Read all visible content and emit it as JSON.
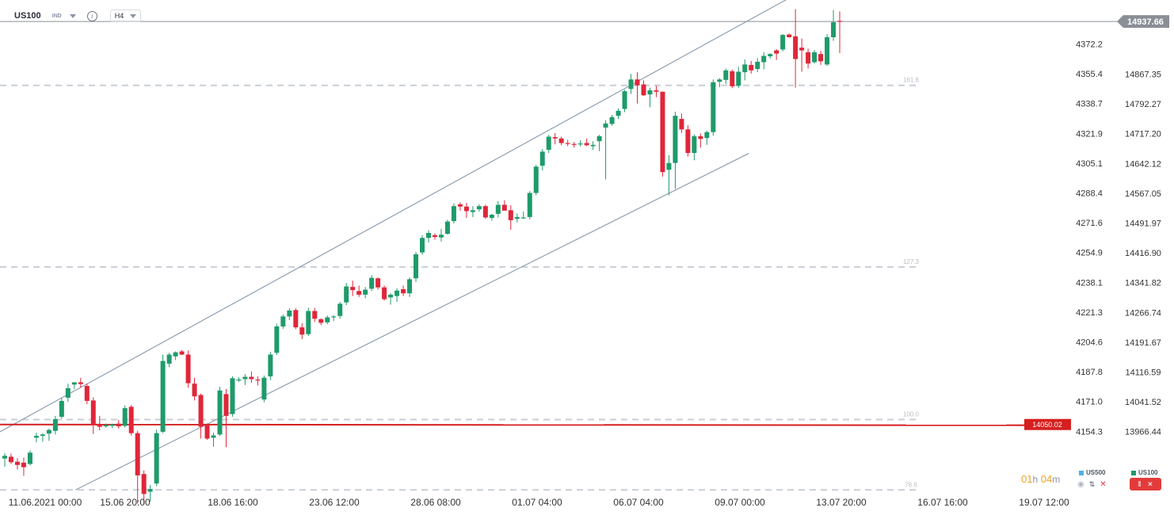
{
  "header": {
    "symbol": "US100",
    "market_tag": "IND",
    "timeframe": "H4"
  },
  "chart_data": {
    "type": "candlestick",
    "title": "",
    "left_axis_ticks": [
      "4372.2",
      "4355.4",
      "4338.7",
      "4321.9",
      "4305.1",
      "4288.4",
      "4271.6",
      "4254.9",
      "4238.1",
      "4221.3",
      "4204.6",
      "4187.8",
      "4171.0",
      "4154.3"
    ],
    "right_axis_ticks": [
      "14867.35",
      "14792.27",
      "14717.20",
      "14642.12",
      "14567.05",
      "14491.97",
      "14416.90",
      "14341.82",
      "14266.74",
      "14191.67",
      "14116.59",
      "14041.52",
      "13966.44"
    ],
    "ylim": [
      13896,
      14980
    ],
    "x_ticks": [
      "11.06.2021  00:00",
      "15.06  20:00",
      "18.06  16:00",
      "23.06  12:00",
      "28.06  08:00",
      "01.07  04:00",
      "06.07  04:00",
      "09.07  00:00",
      "13.07  20:00",
      "16.07  16:00",
      "19.07  12:00"
    ],
    "current_price": 14937.66,
    "current_price_label": "14937.66",
    "alert_level": 14050.02,
    "alert_label": "14050.02",
    "fib_levels": [
      {
        "label": "161.8",
        "value": 14797
      },
      {
        "label": "127.3",
        "value": 14397
      },
      {
        "label": "100.0",
        "value": 14061
      },
      {
        "label": "78.6",
        "value": 13906
      }
    ],
    "channel_lines": [
      {
        "from": [
          "11.06.2021 00:00",
          14034
        ],
        "to": [
          "13.07 12:00",
          15006
        ]
      },
      {
        "from": [
          "14.06 04:00",
          13906
        ],
        "to": [
          "12.07 12:00",
          14647
        ]
      }
    ],
    "candles": [
      {
        "t": 0,
        "o": 13975,
        "h": 13987,
        "l": 13957,
        "c": 13981
      },
      {
        "t": 1,
        "o": 13979,
        "h": 13986,
        "l": 13963,
        "c": 13967
      },
      {
        "t": 2,
        "o": 13968,
        "h": 13976,
        "l": 13951,
        "c": 13961
      },
      {
        "t": 3,
        "o": 13966,
        "h": 13977,
        "l": 13937,
        "c": 13956
      },
      {
        "t": 4,
        "o": 13963,
        "h": 13993,
        "l": 13960,
        "c": 13988
      },
      {
        "t": 5,
        "o": 14021,
        "h": 14032,
        "l": 14011,
        "c": 14025
      },
      {
        "t": 6,
        "o": 14025,
        "h": 14031,
        "l": 14012,
        "c": 14028
      },
      {
        "t": 7,
        "o": 14030,
        "h": 14041,
        "l": 14014,
        "c": 14038
      },
      {
        "t": 8,
        "o": 14036,
        "h": 14069,
        "l": 14028,
        "c": 14062
      },
      {
        "t": 9,
        "o": 14067,
        "h": 14108,
        "l": 14063,
        "c": 14102
      },
      {
        "t": 10,
        "o": 14109,
        "h": 14140,
        "l": 14100,
        "c": 14130
      },
      {
        "t": 11,
        "o": 14138,
        "h": 14142,
        "l": 14128,
        "c": 14143
      },
      {
        "t": 12,
        "o": 14143,
        "h": 14153,
        "l": 14131,
        "c": 14139
      },
      {
        "t": 13,
        "o": 14135,
        "h": 14140,
        "l": 14095,
        "c": 14102
      },
      {
        "t": 14,
        "o": 14103,
        "h": 14110,
        "l": 14029,
        "c": 14049
      },
      {
        "t": 15,
        "o": 14050,
        "h": 14069,
        "l": 14037,
        "c": 14045
      },
      {
        "t": 16,
        "o": 14046,
        "h": 14052,
        "l": 14043,
        "c": 14049
      },
      {
        "t": 17,
        "o": 14047,
        "h": 14052,
        "l": 14042,
        "c": 14050
      },
      {
        "t": 18,
        "o": 14052,
        "h": 14060,
        "l": 14041,
        "c": 14046
      },
      {
        "t": 19,
        "o": 14047,
        "h": 14092,
        "l": 14043,
        "c": 14086
      },
      {
        "t": 20,
        "o": 14089,
        "h": 14093,
        "l": 14026,
        "c": 14031
      },
      {
        "t": 21,
        "o": 14031,
        "h": 14036,
        "l": 13876,
        "c": 13938
      },
      {
        "t": 22,
        "o": 13941,
        "h": 13949,
        "l": 13876,
        "c": 13897
      },
      {
        "t": 23,
        "o": 13902,
        "h": 13917,
        "l": 13880,
        "c": 13908
      },
      {
        "t": 24,
        "o": 13920,
        "h": 14039,
        "l": 13914,
        "c": 14031
      },
      {
        "t": 25,
        "o": 14034,
        "h": 14204,
        "l": 14031,
        "c": 14190
      },
      {
        "t": 26,
        "o": 14184,
        "h": 14208,
        "l": 14176,
        "c": 14204
      },
      {
        "t": 27,
        "o": 14200,
        "h": 14211,
        "l": 14192,
        "c": 14209
      },
      {
        "t": 28,
        "o": 14211,
        "h": 14214,
        "l": 14203,
        "c": 14204
      },
      {
        "t": 29,
        "o": 14204,
        "h": 14213,
        "l": 14131,
        "c": 14141
      },
      {
        "t": 30,
        "o": 14140,
        "h": 14153,
        "l": 14103,
        "c": 14112
      },
      {
        "t": 31,
        "o": 14115,
        "h": 14118,
        "l": 14019,
        "c": 14045
      },
      {
        "t": 32,
        "o": 14048,
        "h": 14052,
        "l": 14016,
        "c": 14019
      },
      {
        "t": 33,
        "o": 14021,
        "h": 14032,
        "l": 14001,
        "c": 14026
      },
      {
        "t": 34,
        "o": 14028,
        "h": 14133,
        "l": 14025,
        "c": 14125
      },
      {
        "t": 35,
        "o": 14117,
        "h": 14128,
        "l": 14000,
        "c": 14069
      },
      {
        "t": 36,
        "o": 14073,
        "h": 14156,
        "l": 14067,
        "c": 14152
      },
      {
        "t": 37,
        "o": 14147,
        "h": 14154,
        "l": 14144,
        "c": 14149
      },
      {
        "t": 38,
        "o": 14150,
        "h": 14161,
        "l": 14137,
        "c": 14155
      },
      {
        "t": 39,
        "o": 14155,
        "h": 14167,
        "l": 14142,
        "c": 14150
      },
      {
        "t": 40,
        "o": 14149,
        "h": 14156,
        "l": 14136,
        "c": 14148
      },
      {
        "t": 41,
        "o": 14105,
        "h": 14158,
        "l": 14099,
        "c": 14153
      },
      {
        "t": 42,
        "o": 14156,
        "h": 14210,
        "l": 14148,
        "c": 14204
      },
      {
        "t": 43,
        "o": 14208,
        "h": 14272,
        "l": 14203,
        "c": 14266
      },
      {
        "t": 44,
        "o": 14266,
        "h": 14292,
        "l": 14261,
        "c": 14288
      },
      {
        "t": 45,
        "o": 14288,
        "h": 14306,
        "l": 14280,
        "c": 14301
      },
      {
        "t": 46,
        "o": 14302,
        "h": 14306,
        "l": 14260,
        "c": 14264
      },
      {
        "t": 47,
        "o": 14264,
        "h": 14273,
        "l": 14238,
        "c": 14248
      },
      {
        "t": 48,
        "o": 14249,
        "h": 14307,
        "l": 14245,
        "c": 14300
      },
      {
        "t": 49,
        "o": 14300,
        "h": 14307,
        "l": 14276,
        "c": 14283
      },
      {
        "t": 50,
        "o": 14282,
        "h": 14284,
        "l": 14269,
        "c": 14274
      },
      {
        "t": 51,
        "o": 14275,
        "h": 14290,
        "l": 14271,
        "c": 14286
      },
      {
        "t": 52,
        "o": 14286,
        "h": 14291,
        "l": 14278,
        "c": 14288
      },
      {
        "t": 53,
        "o": 14289,
        "h": 14320,
        "l": 14283,
        "c": 14316
      },
      {
        "t": 54,
        "o": 14319,
        "h": 14362,
        "l": 14313,
        "c": 14354
      },
      {
        "t": 55,
        "o": 14353,
        "h": 14367,
        "l": 14333,
        "c": 14346
      },
      {
        "t": 56,
        "o": 14344,
        "h": 14356,
        "l": 14331,
        "c": 14336
      },
      {
        "t": 57,
        "o": 14336,
        "h": 14353,
        "l": 14328,
        "c": 14347
      },
      {
        "t": 58,
        "o": 14349,
        "h": 14379,
        "l": 14344,
        "c": 14373
      },
      {
        "t": 59,
        "o": 14372,
        "h": 14374,
        "l": 14347,
        "c": 14352
      },
      {
        "t": 60,
        "o": 14352,
        "h": 14356,
        "l": 14323,
        "c": 14326
      },
      {
        "t": 61,
        "o": 14330,
        "h": 14339,
        "l": 14314,
        "c": 14336
      },
      {
        "t": 62,
        "o": 14333,
        "h": 14350,
        "l": 14320,
        "c": 14345
      },
      {
        "t": 63,
        "o": 14348,
        "h": 14356,
        "l": 14333,
        "c": 14339
      },
      {
        "t": 64,
        "o": 14339,
        "h": 14374,
        "l": 14331,
        "c": 14370
      },
      {
        "t": 65,
        "o": 14372,
        "h": 14430,
        "l": 14364,
        "c": 14425
      },
      {
        "t": 66,
        "o": 14429,
        "h": 14467,
        "l": 14424,
        "c": 14461
      },
      {
        "t": 67,
        "o": 14461,
        "h": 14478,
        "l": 14451,
        "c": 14472
      },
      {
        "t": 68,
        "o": 14467,
        "h": 14471,
        "l": 14457,
        "c": 14463
      },
      {
        "t": 69,
        "o": 14462,
        "h": 14481,
        "l": 14453,
        "c": 14468
      },
      {
        "t": 70,
        "o": 14470,
        "h": 14501,
        "l": 14468,
        "c": 14497
      },
      {
        "t": 71,
        "o": 14498,
        "h": 14537,
        "l": 14493,
        "c": 14531
      },
      {
        "t": 72,
        "o": 14535,
        "h": 14539,
        "l": 14521,
        "c": 14530
      },
      {
        "t": 73,
        "o": 14530,
        "h": 14538,
        "l": 14505,
        "c": 14520
      },
      {
        "t": 74,
        "o": 14518,
        "h": 14531,
        "l": 14507,
        "c": 14522
      },
      {
        "t": 75,
        "o": 14524,
        "h": 14535,
        "l": 14519,
        "c": 14531
      },
      {
        "t": 76,
        "o": 14531,
        "h": 14534,
        "l": 14503,
        "c": 14506
      },
      {
        "t": 77,
        "o": 14505,
        "h": 14514,
        "l": 14499,
        "c": 14512
      },
      {
        "t": 78,
        "o": 14514,
        "h": 14542,
        "l": 14506,
        "c": 14534
      },
      {
        "t": 79,
        "o": 14534,
        "h": 14544,
        "l": 14523,
        "c": 14521
      },
      {
        "t": 80,
        "o": 14522,
        "h": 14533,
        "l": 14479,
        "c": 14500
      },
      {
        "t": 81,
        "o": 14503,
        "h": 14515,
        "l": 14495,
        "c": 14507
      },
      {
        "t": 82,
        "o": 14505,
        "h": 14519,
        "l": 14503,
        "c": 14506
      },
      {
        "t": 83,
        "o": 14507,
        "h": 14564,
        "l": 14502,
        "c": 14560
      },
      {
        "t": 84,
        "o": 14560,
        "h": 14622,
        "l": 14555,
        "c": 14618
      },
      {
        "t": 85,
        "o": 14620,
        "h": 14657,
        "l": 14610,
        "c": 14651
      },
      {
        "t": 86,
        "o": 14655,
        "h": 14688,
        "l": 14648,
        "c": 14684
      },
      {
        "t": 87,
        "o": 14683,
        "h": 14692,
        "l": 14667,
        "c": 14680
      },
      {
        "t": 88,
        "o": 14680,
        "h": 14684,
        "l": 14665,
        "c": 14670
      },
      {
        "t": 89,
        "o": 14670,
        "h": 14677,
        "l": 14663,
        "c": 14669
      },
      {
        "t": 90,
        "o": 14668,
        "h": 14672,
        "l": 14660,
        "c": 14666
      },
      {
        "t": 91,
        "o": 14667,
        "h": 14676,
        "l": 14662,
        "c": 14669
      },
      {
        "t": 92,
        "o": 14670,
        "h": 14680,
        "l": 14663,
        "c": 14665
      },
      {
        "t": 93,
        "o": 14663,
        "h": 14674,
        "l": 14655,
        "c": 14666
      },
      {
        "t": 94,
        "o": 14674,
        "h": 14688,
        "l": 14652,
        "c": 14685
      },
      {
        "t": 95,
        "o": 14704,
        "h": 14720,
        "l": 14590,
        "c": 14713
      },
      {
        "t": 96,
        "o": 14712,
        "h": 14732,
        "l": 14708,
        "c": 14727
      },
      {
        "t": 97,
        "o": 14730,
        "h": 14746,
        "l": 14723,
        "c": 14741
      },
      {
        "t": 98,
        "o": 14745,
        "h": 14787,
        "l": 14738,
        "c": 14784
      },
      {
        "t": 99,
        "o": 14789,
        "h": 14822,
        "l": 14778,
        "c": 14810
      },
      {
        "t": 100,
        "o": 14810,
        "h": 14826,
        "l": 14757,
        "c": 14797
      },
      {
        "t": 101,
        "o": 14799,
        "h": 14808,
        "l": 14774,
        "c": 14775
      },
      {
        "t": 102,
        "o": 14777,
        "h": 14792,
        "l": 14749,
        "c": 14786
      },
      {
        "t": 103,
        "o": 14786,
        "h": 14796,
        "l": 14771,
        "c": 14783
      },
      {
        "t": 104,
        "o": 14783,
        "h": 14779,
        "l": 14596,
        "c": 14606
      },
      {
        "t": 105,
        "o": 14611,
        "h": 14643,
        "l": 14555,
        "c": 14626
      },
      {
        "t": 106,
        "o": 14626,
        "h": 14739,
        "l": 14569,
        "c": 14730
      },
      {
        "t": 107,
        "o": 14723,
        "h": 14735,
        "l": 14692,
        "c": 14700
      },
      {
        "t": 108,
        "o": 14700,
        "h": 14709,
        "l": 14640,
        "c": 14648
      },
      {
        "t": 109,
        "o": 14648,
        "h": 14689,
        "l": 14632,
        "c": 14685
      },
      {
        "t": 110,
        "o": 14685,
        "h": 14691,
        "l": 14660,
        "c": 14679
      },
      {
        "t": 111,
        "o": 14681,
        "h": 14697,
        "l": 14666,
        "c": 14694
      },
      {
        "t": 112,
        "o": 14694,
        "h": 14810,
        "l": 14686,
        "c": 14804
      },
      {
        "t": 113,
        "o": 14805,
        "h": 14813,
        "l": 14793,
        "c": 14810
      },
      {
        "t": 114,
        "o": 14809,
        "h": 14834,
        "l": 14800,
        "c": 14830
      },
      {
        "t": 115,
        "o": 14828,
        "h": 14832,
        "l": 14791,
        "c": 14795
      },
      {
        "t": 116,
        "o": 14796,
        "h": 14838,
        "l": 14791,
        "c": 14827
      },
      {
        "t": 117,
        "o": 14826,
        "h": 14854,
        "l": 14808,
        "c": 14843
      },
      {
        "t": 118,
        "o": 14842,
        "h": 14851,
        "l": 14823,
        "c": 14830
      },
      {
        "t": 119,
        "o": 14833,
        "h": 14857,
        "l": 14826,
        "c": 14849
      },
      {
        "t": 120,
        "o": 14848,
        "h": 14870,
        "l": 14832,
        "c": 14862
      },
      {
        "t": 121,
        "o": 14861,
        "h": 14868,
        "l": 14856,
        "c": 14866
      },
      {
        "t": 122,
        "o": 14874,
        "h": 14877,
        "l": 14853,
        "c": 14867
      },
      {
        "t": 123,
        "o": 14876,
        "h": 14910,
        "l": 14872,
        "c": 14908
      },
      {
        "t": 124,
        "o": 14909,
        "h": 14911,
        "l": 14902,
        "c": 14903
      },
      {
        "t": 125,
        "o": 14905,
        "h": 14965,
        "l": 14792,
        "c": 14855
      },
      {
        "t": 126,
        "o": 14880,
        "h": 14900,
        "l": 14827,
        "c": 14874
      },
      {
        "t": 127,
        "o": 14870,
        "h": 14878,
        "l": 14834,
        "c": 14845
      },
      {
        "t": 128,
        "o": 14848,
        "h": 14875,
        "l": 14845,
        "c": 14870
      },
      {
        "t": 129,
        "o": 14866,
        "h": 14873,
        "l": 14842,
        "c": 14850
      },
      {
        "t": 130,
        "o": 14843,
        "h": 14910,
        "l": 14840,
        "c": 14903
      },
      {
        "t": 131,
        "o": 14903,
        "h": 14963,
        "l": 14895,
        "c": 14936
      },
      {
        "t": 132,
        "o": 14939,
        "h": 14960,
        "l": 14868,
        "c": 14937
      }
    ]
  },
  "legend": {
    "series_a": "US500",
    "series_b": "US100"
  },
  "countdown": {
    "hours": "01",
    "hours_unit": "h",
    "minutes": "04",
    "minutes_unit": "m"
  },
  "colors": {
    "up": "#1e9b6a",
    "down": "#e0263a",
    "grid_dash": "#c9ced6",
    "channel": "#8fa0b0",
    "price_line": "#8a8f96",
    "alert": "#d61f1f",
    "axis_text": "#333333",
    "fib_label": "#b8bec7"
  }
}
